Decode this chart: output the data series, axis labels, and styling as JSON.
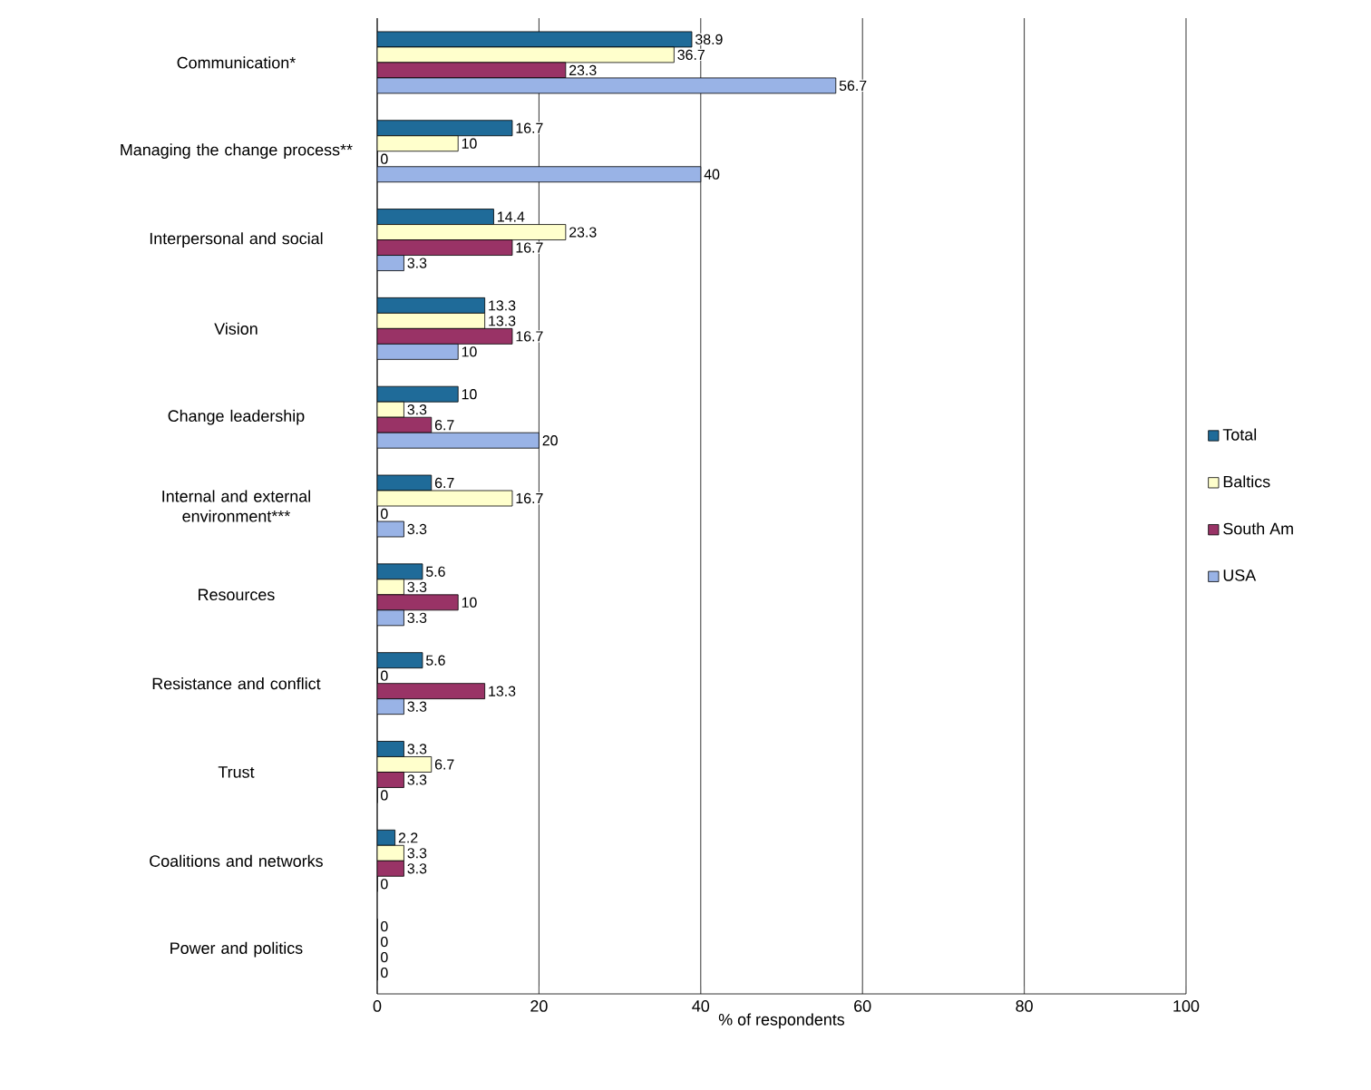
{
  "chart_data": {
    "type": "bar",
    "orientation": "horizontal",
    "categories": [
      "Communication*",
      "Managing the change process**",
      "Interpersonal and social",
      "Vision",
      "Change leadership",
      "Internal and external environment***",
      "Resources",
      "Resistance and conflict",
      "Trust",
      "Coalitions and networks",
      "Power and politics"
    ],
    "series": [
      {
        "name": "Total",
        "color": "#1f6b99",
        "values": [
          38.9,
          16.7,
          14.4,
          13.3,
          10,
          6.7,
          5.6,
          5.6,
          3.3,
          2.2,
          0
        ]
      },
      {
        "name": "Baltics",
        "color": "#ffffcc",
        "values": [
          36.7,
          10,
          23.3,
          13.3,
          3.3,
          16.7,
          3.3,
          0,
          6.7,
          3.3,
          0
        ]
      },
      {
        "name": "South Am",
        "color": "#993366",
        "values": [
          23.3,
          0,
          16.7,
          16.7,
          6.7,
          0,
          10,
          13.3,
          3.3,
          3.3,
          0
        ]
      },
      {
        "name": "USA",
        "color": "#99b3e6",
        "values": [
          56.7,
          40,
          3.3,
          10,
          20,
          3.3,
          3.3,
          3.3,
          0,
          0,
          0
        ]
      }
    ],
    "xlabel": "% of respondents",
    "xlim": [
      0,
      100
    ],
    "xticks": [
      0,
      20,
      40,
      60,
      80,
      100
    ],
    "grid": "x",
    "legend": "right",
    "data_labels": true
  }
}
